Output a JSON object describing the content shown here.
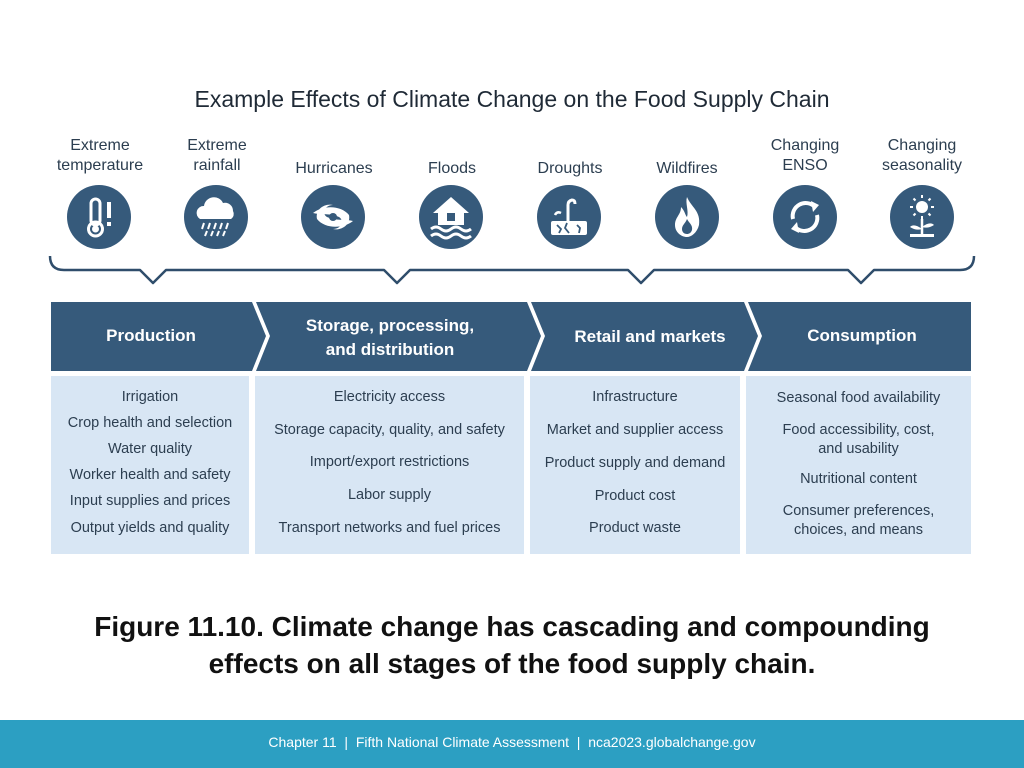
{
  "title": "Example Effects of Climate Change on the Food Supply Chain",
  "hazards": [
    {
      "label": "Extreme\ntemperature",
      "icon": "thermometer-alert-icon"
    },
    {
      "label": "Extreme\nrainfall",
      "icon": "rain-cloud-icon"
    },
    {
      "label": "Hurricanes",
      "icon": "hurricane-icon"
    },
    {
      "label": "Floods",
      "icon": "flooded-house-icon"
    },
    {
      "label": "Droughts",
      "icon": "dry-plant-icon"
    },
    {
      "label": "Wildfires",
      "icon": "flame-icon"
    },
    {
      "label": "Changing\nENSO",
      "icon": "cycle-arrows-icon"
    },
    {
      "label": "Changing\nseasonality",
      "icon": "sun-plant-icon"
    }
  ],
  "stages": [
    {
      "label": "Production",
      "items": [
        "Irrigation",
        "Crop health and selection",
        "Water quality",
        "Worker health and safety",
        "Input supplies and prices",
        "Output yields and quality"
      ]
    },
    {
      "label": "Storage, processing,\nand distribution",
      "items": [
        "Electricity access",
        "Storage capacity, quality, and safety",
        "Import/export restrictions",
        "Labor supply",
        "Transport networks and fuel prices"
      ]
    },
    {
      "label": "Retail and markets",
      "items": [
        "Infrastructure",
        "Market and supplier access",
        "Product supply and demand",
        "Product cost",
        "Product waste"
      ]
    },
    {
      "label": "Consumption",
      "items": [
        "Seasonal food availability",
        "Food accessibility, cost,\nand usability",
        "Nutritional content",
        "Consumer preferences,\nchoices, and means"
      ]
    }
  ],
  "caption": "Figure 11.10. Climate change has cascading and compounding effects on all stages of the food supply chain.",
  "footer": "Chapter 11  |  Fifth National Climate Assessment  |  nca2023.globalchange.gov",
  "colors": {
    "dark_blue": "#365a7b",
    "light_blue": "#d8e6f4",
    "footer": "#2c9fc2"
  }
}
